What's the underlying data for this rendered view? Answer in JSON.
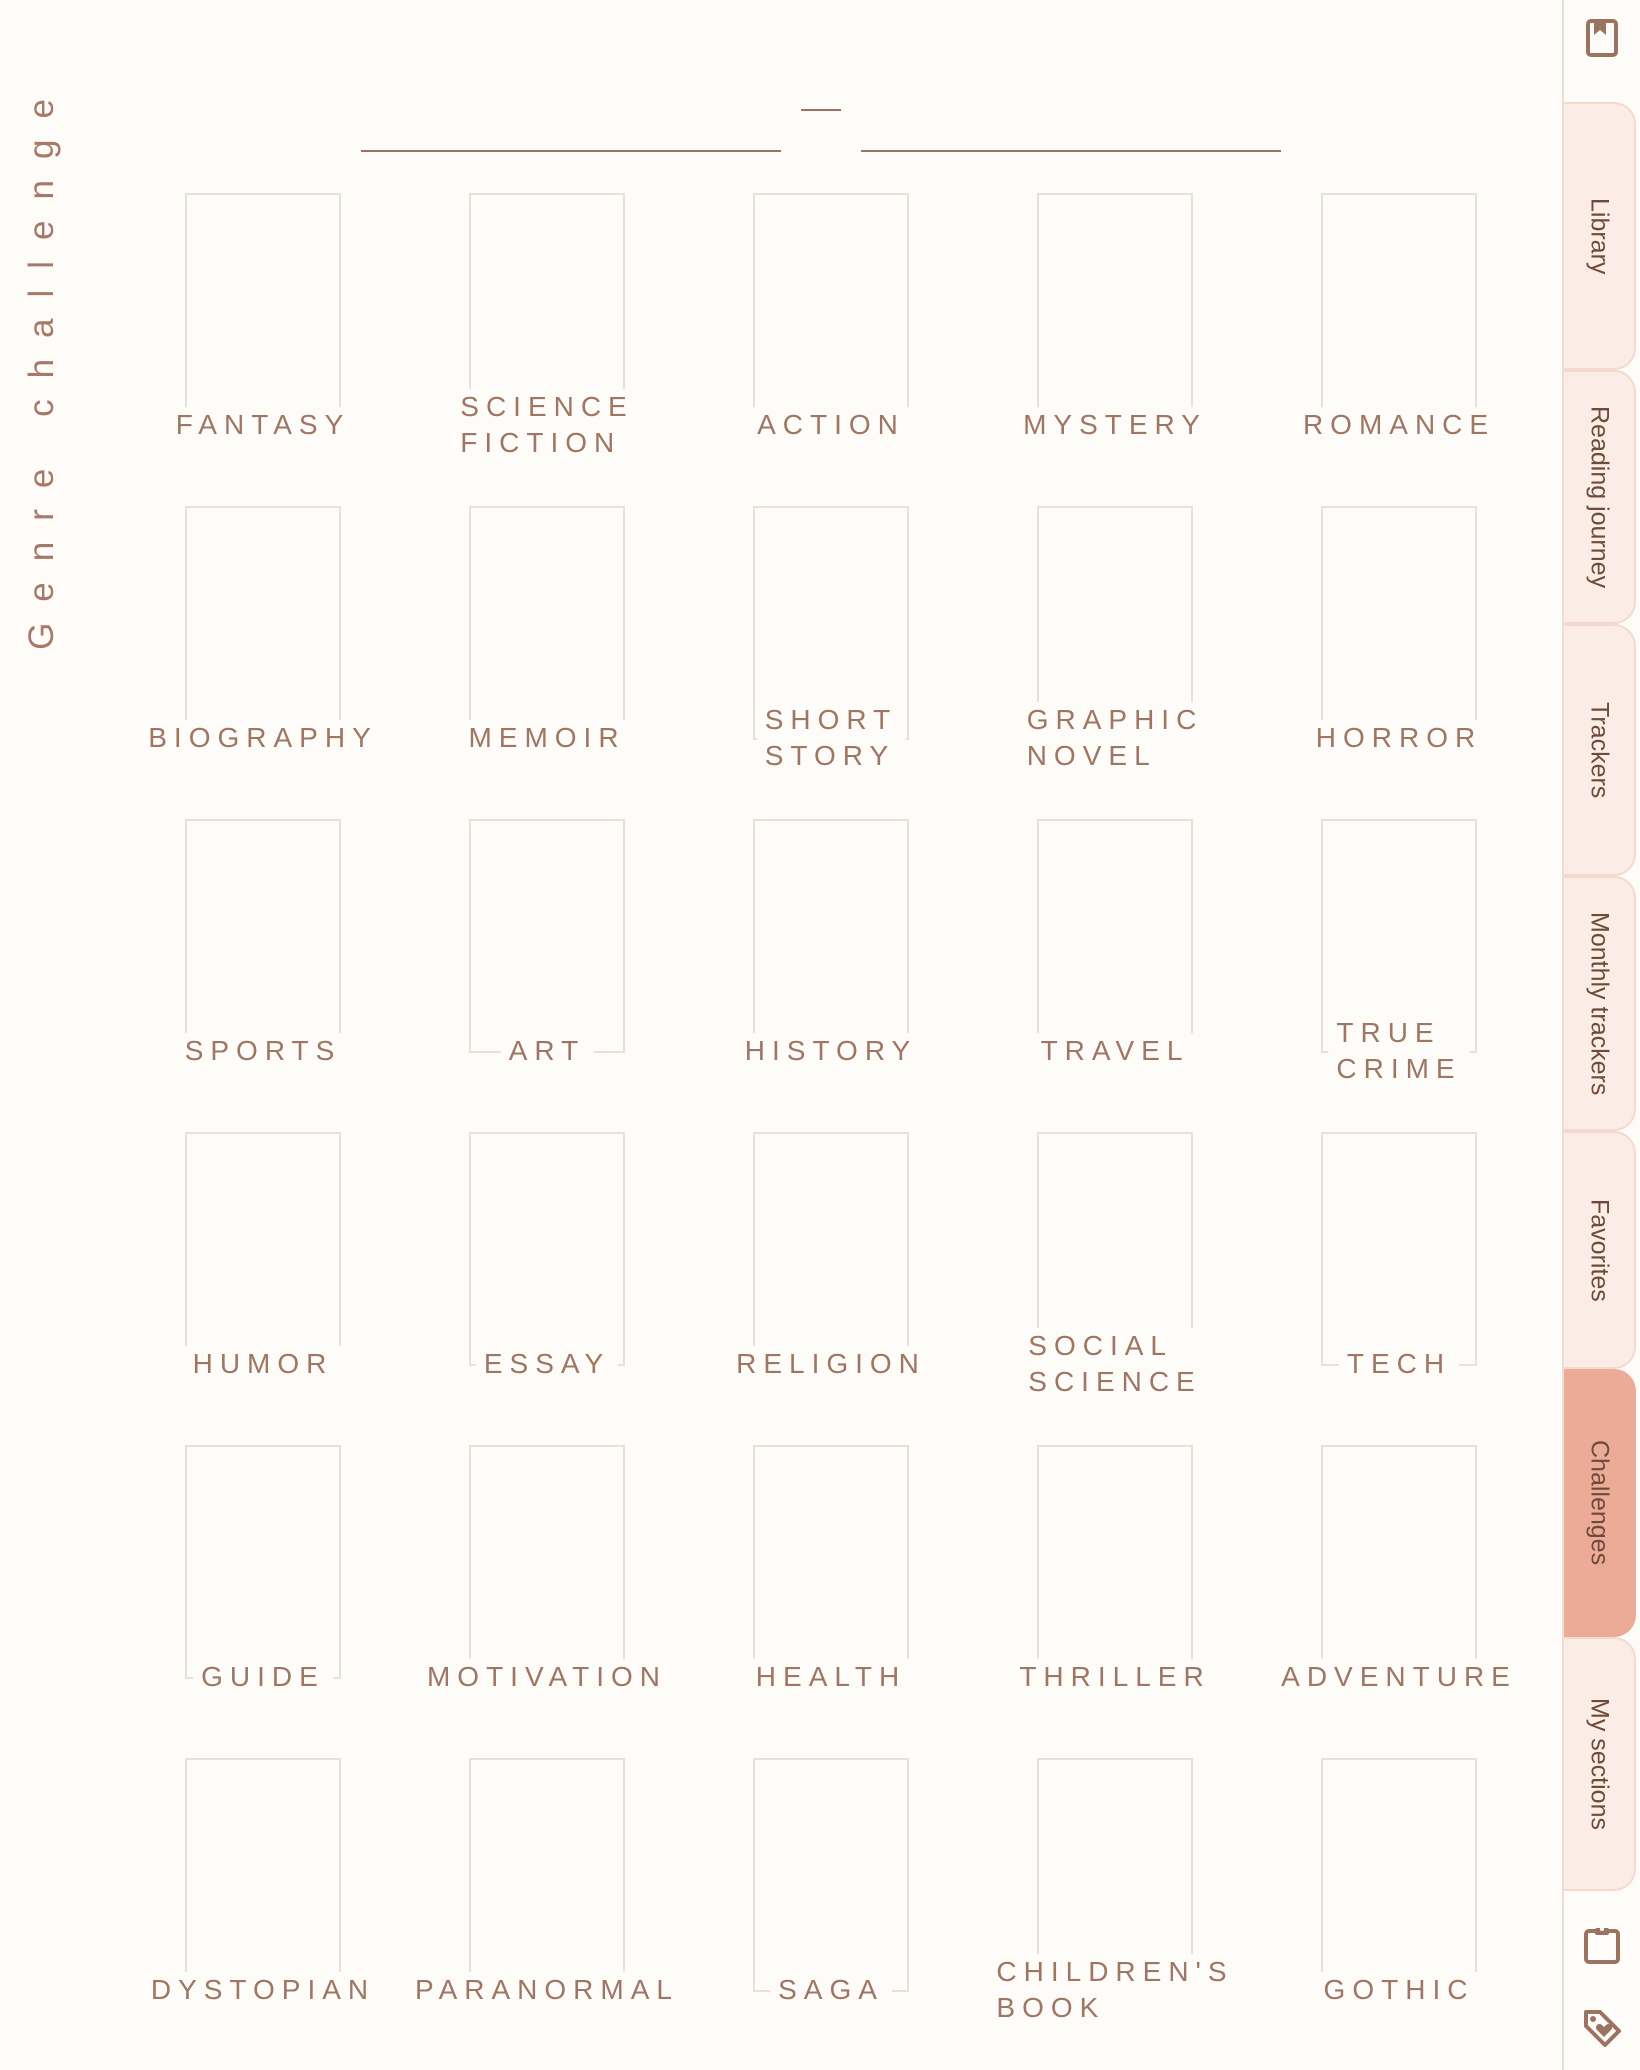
{
  "page": {
    "title": "Genre challenge",
    "genres": [
      "FANTASY",
      "SCIENCE\nFICTION",
      "ACTION",
      "MYSTERY",
      "ROMANCE",
      "BIOGRAPHY",
      "MEMOIR",
      "SHORT\nSTORY",
      "GRAPHIC\nNOVEL",
      "HORROR",
      "SPORTS",
      "ART",
      "HISTORY",
      "TRAVEL",
      "TRUE\nCRIME",
      "HUMOR",
      "ESSAY",
      "RELIGION",
      "SOCIAL\nSCIENCE",
      "TECH",
      "GUIDE",
      "MOTIVATION",
      "HEALTH",
      "THRILLER",
      "ADVENTURE",
      "DYSTOPIAN",
      "PARANORMAL",
      "SAGA",
      "CHILDREN'S\nBOOK",
      "GOTHIC"
    ]
  },
  "sidebar": {
    "top_icon": "bookmark-icon",
    "tabs": [
      {
        "label": "Library",
        "active": false
      },
      {
        "label": "Reading journey",
        "active": false
      },
      {
        "label": "Trackers",
        "active": false
      },
      {
        "label": "Monthly trackers",
        "active": false
      },
      {
        "label": "Favorites",
        "active": false
      },
      {
        "label": "Challenges",
        "active": true
      },
      {
        "label": "My sections",
        "active": false
      }
    ],
    "bottom_icons": [
      "clipboard-icon",
      "heart-tag-icon"
    ]
  },
  "colors": {
    "background": "#fdfcf8",
    "text": "#9b7361",
    "tab": "#fcece6",
    "tab_active": "#ecab96",
    "box_border": "#ebdfd9"
  }
}
